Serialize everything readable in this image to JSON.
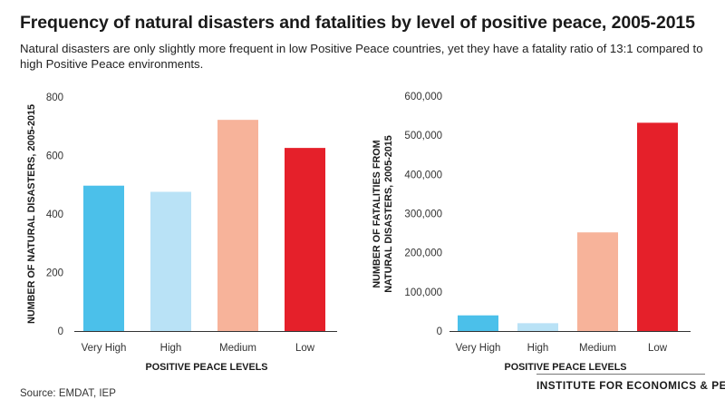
{
  "title": "Frequency of natural disasters and fatalities by level of positive peace, 2005-2015",
  "subtitle": "Natural disasters are only slightly more frequent in low Positive Peace countries, yet they have a fatality ratio of 13:1 compared to high Positive Peace environments.",
  "source": "Source: EMDAT, IEP",
  "logo_text": "INSTITUTE FOR ECONOMICS & PEACE",
  "colors": {
    "very_high": "#4bc0ea",
    "high": "#b9e2f6",
    "medium": "#f7b39a",
    "low": "#e5202a"
  },
  "chart_data": [
    {
      "type": "bar",
      "categories": [
        "Very High",
        "High",
        "Medium",
        "Low"
      ],
      "values": [
        497,
        476,
        722,
        626
      ],
      "xlabel": "POSITIVE PEACE LEVELS",
      "ylabel": "NUMBER OF NATURAL DISASTERS, 2005-2015",
      "ylim": [
        0,
        800
      ],
      "yticks": [
        "0",
        "200",
        "400",
        "600",
        "800"
      ],
      "grid": false
    },
    {
      "type": "bar",
      "categories": [
        "Very High",
        "High",
        "Medium",
        "Low"
      ],
      "values": [
        40000,
        20000,
        252000,
        532000
      ],
      "xlabel": "POSITIVE PEACE LEVELS",
      "ylabel": [
        "NUMBER OF FATALITIES FROM",
        "NATURAL DISASTERS, 2005-2015"
      ],
      "ylim": [
        0,
        600000
      ],
      "yticks": [
        "0",
        "100,000",
        "200,000",
        "300,000",
        "400,000",
        "500,000",
        "600,000"
      ],
      "grid": false
    }
  ]
}
